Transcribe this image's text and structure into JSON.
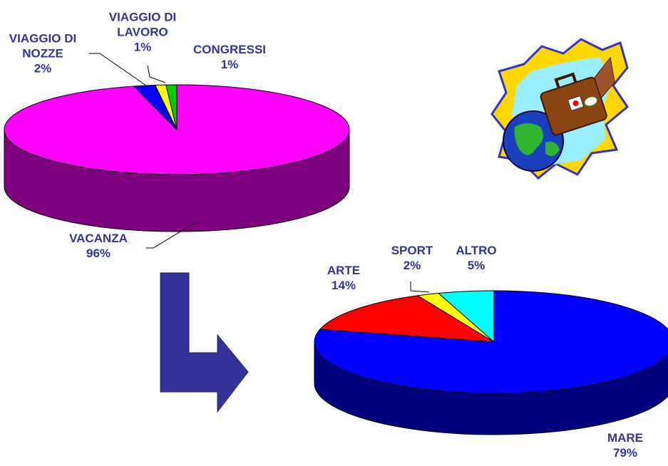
{
  "chart_data": [
    {
      "type": "pie3d",
      "categories": [
        "VACANZA",
        "VIAGGIO DI NOZZE",
        "VIAGGIO DI LAVORO",
        "CONGRESSI"
      ],
      "values": [
        96,
        2,
        1,
        1
      ],
      "value_labels": [
        "96%",
        "2%",
        "1%",
        "1%"
      ],
      "colors": [
        "#ff00ff",
        "#0000ff",
        "#ffff00",
        "#00cc00"
      ]
    },
    {
      "type": "pie3d",
      "categories": [
        "MARE",
        "ARTE",
        "SPORT",
        "ALTRO"
      ],
      "values": [
        79,
        14,
        2,
        5
      ],
      "value_labels": [
        "79%",
        "14%",
        "2%",
        "5%"
      ],
      "colors": [
        "#0000ff",
        "#ff0000",
        "#ffff00",
        "#00ffff"
      ]
    }
  ]
}
